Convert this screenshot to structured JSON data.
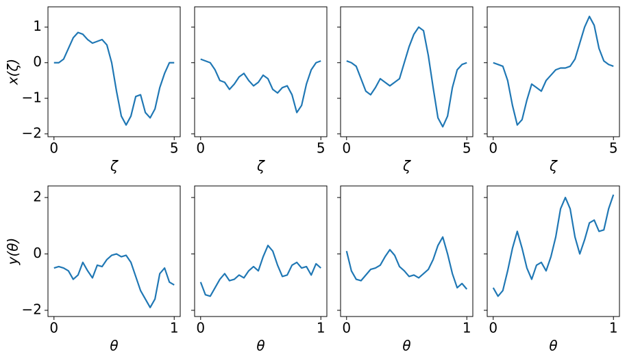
{
  "chart_data": [
    {
      "type": "line",
      "xlabel": "ζ",
      "ylabel": "x(ζ)",
      "color": "#1f77b4",
      "x": [
        0,
        0.2,
        0.4,
        0.6,
        0.8,
        1.0,
        1.2,
        1.4,
        1.6,
        1.8,
        2.0,
        2.2,
        2.4,
        2.6,
        2.8,
        3.0,
        3.2,
        3.4,
        3.6,
        3.8,
        4.0,
        4.2,
        4.4,
        4.6,
        4.8,
        5.0
      ],
      "values": [
        0,
        0,
        0.1,
        0.4,
        0.7,
        0.85,
        0.8,
        0.65,
        0.55,
        0.6,
        0.65,
        0.5,
        0,
        -0.8,
        -1.5,
        -1.75,
        -1.5,
        -0.95,
        -0.9,
        -1.4,
        -1.55,
        -1.3,
        -0.7,
        -0.3,
        0,
        0
      ],
      "xlim": [
        -0.25,
        5.25
      ],
      "ylim": [
        -2.08,
        1.57
      ],
      "xticks": [
        0,
        5
      ],
      "yticks": [
        {
          "value": -2,
          "label": "−2"
        },
        {
          "value": -1,
          "label": "−1"
        },
        0,
        1
      ]
    },
    {
      "type": "line",
      "xlabel": "ζ",
      "color": "#1f77b4",
      "x": [
        0,
        0.2,
        0.4,
        0.6,
        0.8,
        1.0,
        1.2,
        1.4,
        1.6,
        1.8,
        2.0,
        2.2,
        2.4,
        2.6,
        2.8,
        3.0,
        3.2,
        3.4,
        3.6,
        3.8,
        4.0,
        4.2,
        4.4,
        4.6,
        4.8,
        5.0
      ],
      "values": [
        0.1,
        0.05,
        0,
        -0.2,
        -0.5,
        -0.55,
        -0.75,
        -0.6,
        -0.4,
        -0.3,
        -0.5,
        -0.65,
        -0.55,
        -0.35,
        -0.45,
        -0.75,
        -0.85,
        -0.7,
        -0.65,
        -0.9,
        -1.4,
        -1.2,
        -0.6,
        -0.2,
        0,
        0.05
      ],
      "xlim": [
        -0.25,
        5.25
      ],
      "ylim": [
        -2.08,
        1.57
      ],
      "xticks": [
        0,
        5
      ],
      "yticks": [
        -2,
        -1,
        0,
        1
      ]
    },
    {
      "type": "line",
      "xlabel": "ζ",
      "color": "#1f77b4",
      "x": [
        0,
        0.2,
        0.4,
        0.6,
        0.8,
        1.0,
        1.2,
        1.4,
        1.6,
        1.8,
        2.0,
        2.2,
        2.4,
        2.6,
        2.8,
        3.0,
        3.2,
        3.4,
        3.6,
        3.8,
        4.0,
        4.2,
        4.4,
        4.6,
        4.8,
        5.0
      ],
      "values": [
        0.05,
        0,
        -0.1,
        -0.45,
        -0.8,
        -0.9,
        -0.7,
        -0.45,
        -0.55,
        -0.65,
        -0.55,
        -0.45,
        0,
        0.45,
        0.8,
        1.0,
        0.9,
        0.2,
        -0.7,
        -1.55,
        -1.8,
        -1.5,
        -0.7,
        -0.2,
        -0.05,
        0
      ],
      "xlim": [
        -0.25,
        5.25
      ],
      "ylim": [
        -2.08,
        1.57
      ],
      "xticks": [
        0,
        5
      ],
      "yticks": [
        -2,
        -1,
        0,
        1
      ]
    },
    {
      "type": "line",
      "xlabel": "ζ",
      "color": "#1f77b4",
      "x": [
        0,
        0.2,
        0.4,
        0.6,
        0.8,
        1.0,
        1.2,
        1.4,
        1.6,
        1.8,
        2.0,
        2.2,
        2.4,
        2.6,
        2.8,
        3.0,
        3.2,
        3.4,
        3.6,
        3.8,
        4.0,
        4.2,
        4.4,
        4.6,
        4.8,
        5.0
      ],
      "values": [
        0,
        -0.05,
        -0.1,
        -0.5,
        -1.2,
        -1.75,
        -1.6,
        -1.05,
        -0.6,
        -0.7,
        -0.8,
        -0.5,
        -0.35,
        -0.2,
        -0.15,
        -0.15,
        -0.1,
        0.1,
        0.55,
        1.0,
        1.3,
        1.05,
        0.4,
        0.05,
        -0.05,
        -0.1
      ],
      "xlim": [
        -0.25,
        5.25
      ],
      "ylim": [
        -2.08,
        1.57
      ],
      "xticks": [
        0,
        5
      ],
      "yticks": [
        -2,
        -1,
        0,
        1
      ]
    },
    {
      "type": "line",
      "xlabel": "θ",
      "ylabel": "y(θ)",
      "color": "#1f77b4",
      "x": [
        0,
        0.04,
        0.08,
        0.12,
        0.16,
        0.2,
        0.24,
        0.28,
        0.32,
        0.36,
        0.4,
        0.44,
        0.48,
        0.52,
        0.56,
        0.6,
        0.64,
        0.68,
        0.72,
        0.76,
        0.8,
        0.84,
        0.88,
        0.92,
        0.96,
        1.0
      ],
      "values": [
        -0.5,
        -0.45,
        -0.5,
        -0.6,
        -0.9,
        -0.75,
        -0.3,
        -0.6,
        -0.85,
        -0.4,
        -0.45,
        -0.2,
        -0.05,
        0,
        -0.1,
        -0.05,
        -0.3,
        -0.8,
        -1.3,
        -1.6,
        -1.9,
        -1.6,
        -0.7,
        -0.5,
        -1.0,
        -1.1
      ],
      "xlim": [
        -0.05,
        1.05
      ],
      "ylim": [
        -2.22,
        2.41
      ],
      "xticks": [
        0,
        1
      ],
      "yticks": [
        {
          "value": -2,
          "label": "−2"
        },
        0,
        2
      ]
    },
    {
      "type": "line",
      "xlabel": "θ",
      "color": "#1f77b4",
      "x": [
        0,
        0.04,
        0.08,
        0.12,
        0.16,
        0.2,
        0.24,
        0.28,
        0.32,
        0.36,
        0.4,
        0.44,
        0.48,
        0.52,
        0.56,
        0.6,
        0.64,
        0.68,
        0.72,
        0.76,
        0.8,
        0.84,
        0.88,
        0.92,
        0.96,
        1.0
      ],
      "values": [
        -1.0,
        -1.45,
        -1.5,
        -1.2,
        -0.9,
        -0.7,
        -0.95,
        -0.9,
        -0.75,
        -0.85,
        -0.6,
        -0.45,
        -0.6,
        -0.1,
        0.3,
        0.1,
        -0.4,
        -0.8,
        -0.75,
        -0.4,
        -0.3,
        -0.5,
        -0.45,
        -0.75,
        -0.35,
        -0.5
      ],
      "xlim": [
        -0.05,
        1.05
      ],
      "ylim": [
        -2.22,
        2.41
      ],
      "xticks": [
        0,
        1
      ],
      "yticks": [
        -2,
        0,
        2
      ]
    },
    {
      "type": "line",
      "xlabel": "θ",
      "color": "#1f77b4",
      "x": [
        0,
        0.04,
        0.08,
        0.12,
        0.16,
        0.2,
        0.24,
        0.28,
        0.32,
        0.36,
        0.4,
        0.44,
        0.48,
        0.52,
        0.56,
        0.6,
        0.64,
        0.68,
        0.72,
        0.76,
        0.8,
        0.84,
        0.88,
        0.92,
        0.96,
        1.0
      ],
      "values": [
        0.1,
        -0.6,
        -0.9,
        -0.95,
        -0.75,
        -0.55,
        -0.5,
        -0.4,
        -0.1,
        0.15,
        -0.05,
        -0.45,
        -0.6,
        -0.8,
        -0.75,
        -0.85,
        -0.7,
        -0.55,
        -0.2,
        0.3,
        0.6,
        0,
        -0.7,
        -1.2,
        -1.05,
        -1.25
      ],
      "xlim": [
        -0.05,
        1.05
      ],
      "ylim": [
        -2.22,
        2.41
      ],
      "xticks": [
        0,
        1
      ],
      "yticks": [
        -2,
        0,
        2
      ]
    },
    {
      "type": "line",
      "xlabel": "θ",
      "color": "#1f77b4",
      "x": [
        0,
        0.04,
        0.08,
        0.12,
        0.16,
        0.2,
        0.24,
        0.28,
        0.32,
        0.36,
        0.4,
        0.44,
        0.48,
        0.52,
        0.56,
        0.6,
        0.64,
        0.68,
        0.72,
        0.76,
        0.8,
        0.84,
        0.88,
        0.92,
        0.96,
        1.0
      ],
      "values": [
        -1.2,
        -1.5,
        -1.3,
        -0.6,
        0.2,
        0.8,
        0.2,
        -0.5,
        -0.9,
        -0.4,
        -0.3,
        -0.6,
        -0.1,
        0.6,
        1.6,
        2.0,
        1.6,
        0.6,
        0,
        0.5,
        1.1,
        1.2,
        0.8,
        0.85,
        1.6,
        2.1
      ],
      "xlim": [
        -0.05,
        1.05
      ],
      "ylim": [
        -2.22,
        2.41
      ],
      "xticks": [
        0,
        1
      ],
      "yticks": [
        -2,
        0,
        2
      ]
    }
  ]
}
